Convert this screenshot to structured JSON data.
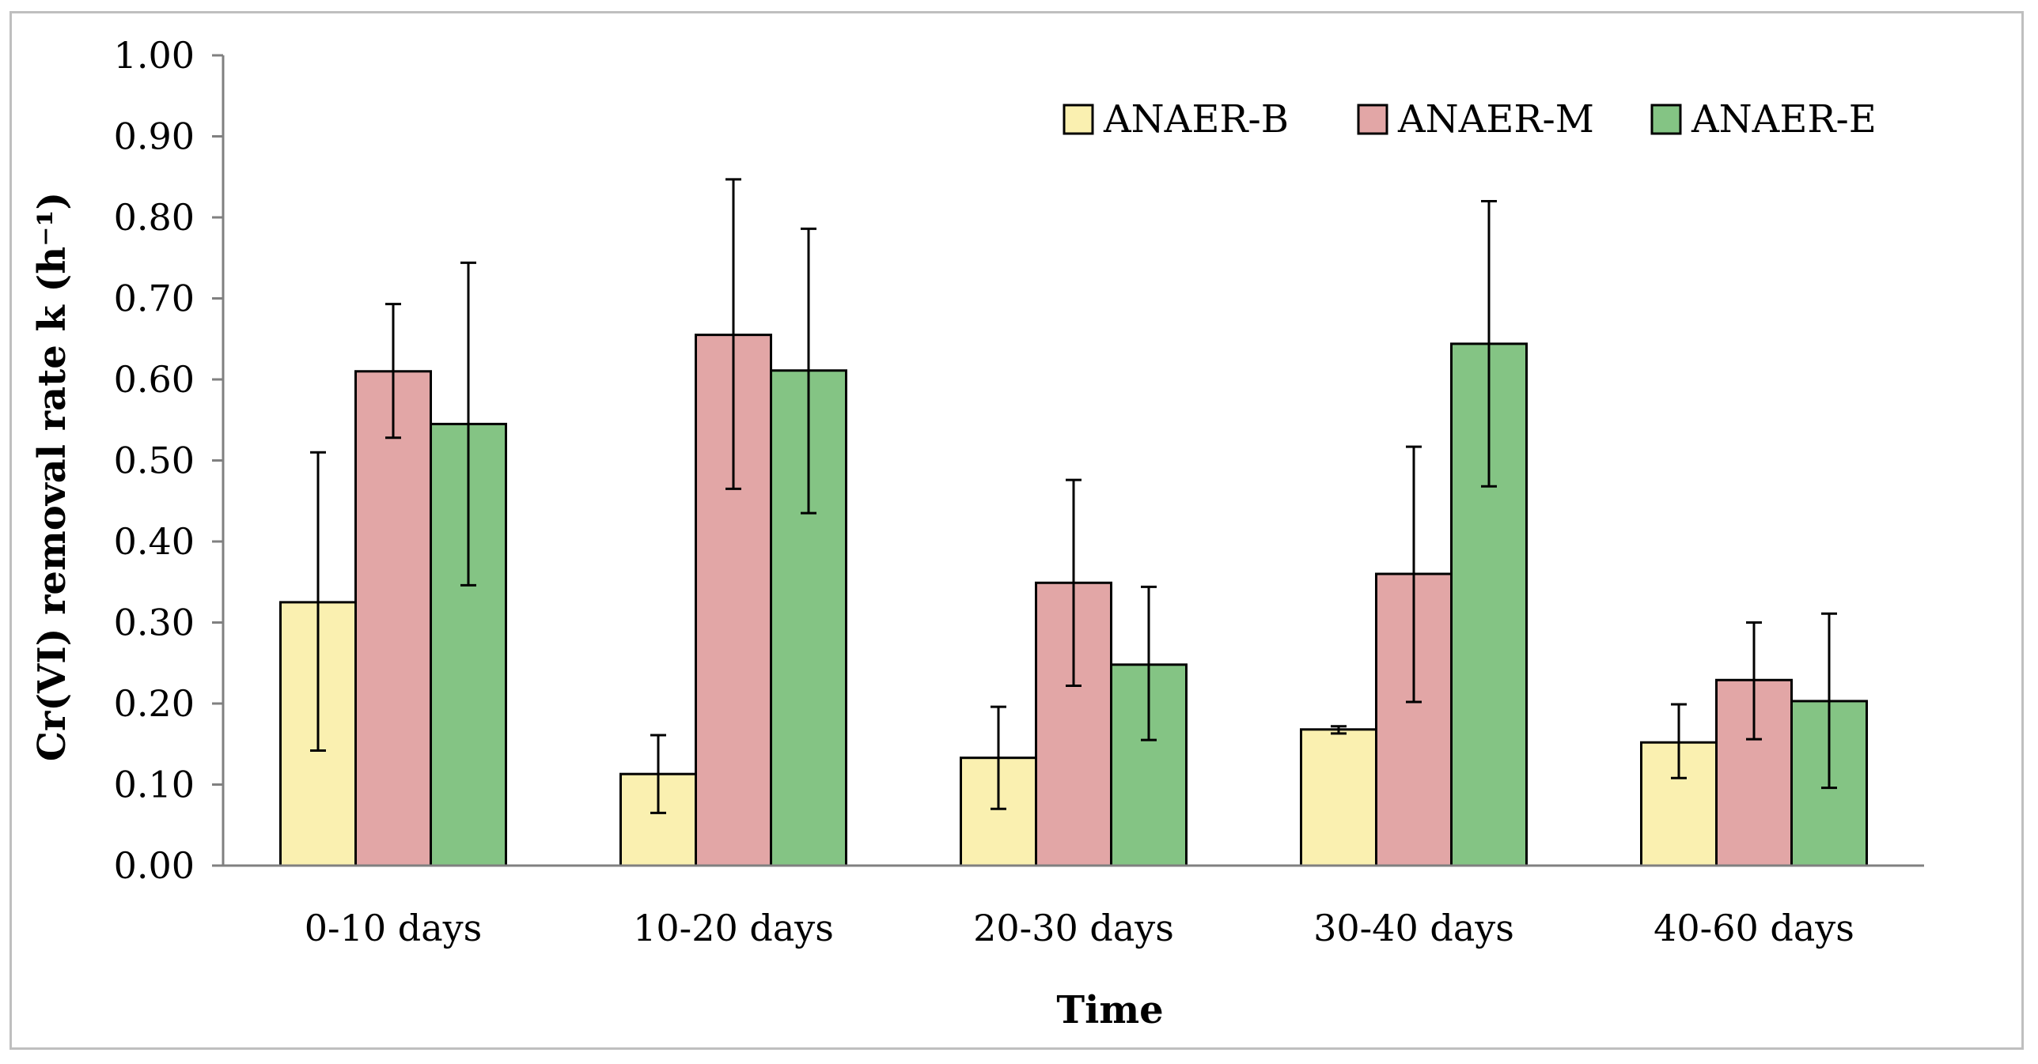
{
  "chart_data": {
    "type": "bar",
    "title": "",
    "xlabel": "Time",
    "ylabel": "Cr(VI) removal rate k (h⁻¹)",
    "ylim": [
      0,
      1
    ],
    "y_ticks": [
      "0.00",
      "0.10",
      "0.20",
      "0.30",
      "0.40",
      "0.50",
      "0.60",
      "0.70",
      "0.80",
      "0.90",
      "1.00"
    ],
    "grid": false,
    "legend_position": "top-right",
    "categories": [
      "0-10 days",
      "10-20 days",
      "20-30 days",
      "30-40 days",
      "40-60 days"
    ],
    "series": [
      {
        "name": "ANAER-B",
        "color": "#faf0b0",
        "values": [
          0.325,
          0.113,
          0.133,
          0.168,
          0.152
        ],
        "error_low": [
          0.142,
          0.065,
          0.07,
          0.163,
          0.108
        ],
        "error_high": [
          0.51,
          0.161,
          0.196,
          0.172,
          0.199
        ]
      },
      {
        "name": "ANAER-M",
        "color": "#e2a6a6",
        "values": [
          0.61,
          0.655,
          0.349,
          0.36,
          0.229
        ],
        "error_low": [
          0.528,
          0.465,
          0.222,
          0.202,
          0.156
        ],
        "error_high": [
          0.693,
          0.847,
          0.476,
          0.517,
          0.3
        ]
      },
      {
        "name": "ANAER-E",
        "color": "#84c484",
        "values": [
          0.545,
          0.611,
          0.248,
          0.644,
          0.203
        ],
        "error_low": [
          0.346,
          0.435,
          0.155,
          0.468,
          0.096
        ],
        "error_high": [
          0.744,
          0.786,
          0.344,
          0.82,
          0.311
        ]
      }
    ]
  }
}
